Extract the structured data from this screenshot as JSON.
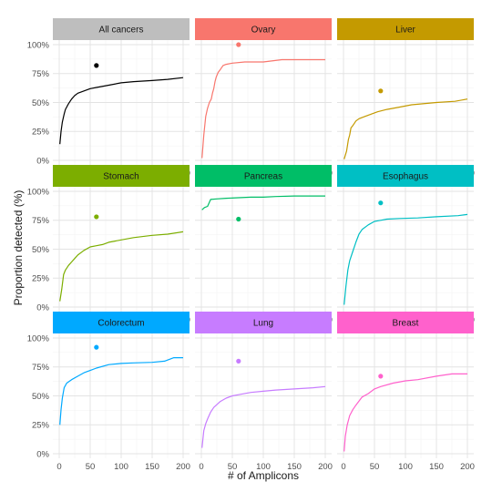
{
  "chart_data": {
    "type": "line",
    "xlabel": "# of Amplicons",
    "ylabel": "Proportion detected (%)",
    "xlim": [
      0,
      200
    ],
    "ylim": [
      0,
      1
    ],
    "x_ticks": [
      "0",
      "50",
      "100",
      "150",
      "200"
    ],
    "y_ticks": [
      "0%",
      "25%",
      "50%",
      "75%",
      "100%"
    ],
    "grid": true,
    "panels": [
      {
        "name": "All cancers",
        "color": "#000000",
        "strip_color": "#bebebe",
        "curve": [
          [
            1,
            0.14
          ],
          [
            3,
            0.25
          ],
          [
            5,
            0.33
          ],
          [
            8,
            0.4
          ],
          [
            10,
            0.44
          ],
          [
            15,
            0.49
          ],
          [
            20,
            0.53
          ],
          [
            25,
            0.56
          ],
          [
            30,
            0.58
          ],
          [
            40,
            0.6
          ],
          [
            50,
            0.62
          ],
          [
            60,
            0.63
          ],
          [
            80,
            0.65
          ],
          [
            100,
            0.67
          ],
          [
            120,
            0.68
          ],
          [
            150,
            0.69
          ],
          [
            175,
            0.7
          ],
          [
            200,
            0.715
          ]
        ],
        "point": [
          60,
          0.82
        ]
      },
      {
        "name": "Ovary",
        "color": "#f8766d",
        "strip_color": "#f8766d",
        "curve": [
          [
            1,
            0.02
          ],
          [
            4,
            0.22
          ],
          [
            7,
            0.38
          ],
          [
            10,
            0.45
          ],
          [
            13,
            0.5
          ],
          [
            16,
            0.53
          ],
          [
            18,
            0.58
          ],
          [
            20,
            0.62
          ],
          [
            22,
            0.68
          ],
          [
            24,
            0.72
          ],
          [
            27,
            0.76
          ],
          [
            30,
            0.78
          ],
          [
            35,
            0.82
          ],
          [
            40,
            0.83
          ],
          [
            50,
            0.84
          ],
          [
            70,
            0.85
          ],
          [
            100,
            0.85
          ],
          [
            130,
            0.87
          ],
          [
            200,
            0.87
          ]
        ],
        "point": [
          60,
          1.0
        ]
      },
      {
        "name": "Liver",
        "color": "#c49a00",
        "strip_color": "#c49a00",
        "curve": [
          [
            1,
            0.01
          ],
          [
            5,
            0.08
          ],
          [
            8,
            0.18
          ],
          [
            10,
            0.22
          ],
          [
            12,
            0.28
          ],
          [
            15,
            0.3
          ],
          [
            20,
            0.34
          ],
          [
            25,
            0.36
          ],
          [
            35,
            0.38
          ],
          [
            45,
            0.4
          ],
          [
            55,
            0.42
          ],
          [
            70,
            0.44
          ],
          [
            90,
            0.46
          ],
          [
            110,
            0.48
          ],
          [
            150,
            0.5
          ],
          [
            180,
            0.51
          ],
          [
            200,
            0.53
          ]
        ],
        "point": [
          60,
          0.6
        ]
      },
      {
        "name": "Stomach",
        "color": "#7cae00",
        "strip_color": "#7cae00",
        "curve": [
          [
            1,
            0.05
          ],
          [
            4,
            0.15
          ],
          [
            7,
            0.28
          ],
          [
            10,
            0.32
          ],
          [
            15,
            0.36
          ],
          [
            20,
            0.39
          ],
          [
            25,
            0.42
          ],
          [
            30,
            0.45
          ],
          [
            40,
            0.49
          ],
          [
            50,
            0.52
          ],
          [
            60,
            0.53
          ],
          [
            70,
            0.54
          ],
          [
            80,
            0.56
          ],
          [
            90,
            0.57
          ],
          [
            120,
            0.6
          ],
          [
            150,
            0.62
          ],
          [
            175,
            0.63
          ],
          [
            200,
            0.65
          ]
        ],
        "point": [
          60,
          0.78
        ]
      },
      {
        "name": "Pancreas",
        "color": "#00be67",
        "strip_color": "#00be67",
        "curve": [
          [
            1,
            0.84
          ],
          [
            5,
            0.86
          ],
          [
            10,
            0.87
          ],
          [
            15,
            0.93
          ],
          [
            25,
            0.935
          ],
          [
            40,
            0.94
          ],
          [
            60,
            0.945
          ],
          [
            80,
            0.95
          ],
          [
            100,
            0.95
          ],
          [
            120,
            0.955
          ],
          [
            150,
            0.96
          ],
          [
            200,
            0.96
          ]
        ],
        "point": [
          60,
          0.76
        ]
      },
      {
        "name": "Esophagus",
        "color": "#00bfc4",
        "strip_color": "#00bfc4",
        "curve": [
          [
            1,
            0.02
          ],
          [
            4,
            0.18
          ],
          [
            7,
            0.32
          ],
          [
            10,
            0.4
          ],
          [
            15,
            0.48
          ],
          [
            20,
            0.56
          ],
          [
            25,
            0.63
          ],
          [
            30,
            0.67
          ],
          [
            40,
            0.71
          ],
          [
            50,
            0.74
          ],
          [
            60,
            0.75
          ],
          [
            70,
            0.76
          ],
          [
            90,
            0.765
          ],
          [
            120,
            0.77
          ],
          [
            150,
            0.78
          ],
          [
            185,
            0.79
          ],
          [
            200,
            0.8
          ]
        ],
        "point": [
          60,
          0.9
        ]
      },
      {
        "name": "Colorectum",
        "color": "#00a9ff",
        "strip_color": "#00a9ff",
        "curve": [
          [
            1,
            0.25
          ],
          [
            3,
            0.38
          ],
          [
            5,
            0.48
          ],
          [
            8,
            0.57
          ],
          [
            12,
            0.61
          ],
          [
            20,
            0.64
          ],
          [
            30,
            0.67
          ],
          [
            40,
            0.7
          ],
          [
            50,
            0.72
          ],
          [
            60,
            0.74
          ],
          [
            80,
            0.77
          ],
          [
            100,
            0.78
          ],
          [
            120,
            0.785
          ],
          [
            150,
            0.79
          ],
          [
            170,
            0.8
          ],
          [
            185,
            0.83
          ],
          [
            200,
            0.83
          ]
        ],
        "point": [
          60,
          0.92
        ]
      },
      {
        "name": "Lung",
        "color": "#c77cff",
        "strip_color": "#c77cff",
        "curve": [
          [
            1,
            0.05
          ],
          [
            4,
            0.2
          ],
          [
            7,
            0.26
          ],
          [
            10,
            0.3
          ],
          [
            15,
            0.36
          ],
          [
            20,
            0.4
          ],
          [
            30,
            0.45
          ],
          [
            40,
            0.48
          ],
          [
            50,
            0.5
          ],
          [
            60,
            0.51
          ],
          [
            80,
            0.53
          ],
          [
            100,
            0.54
          ],
          [
            120,
            0.55
          ],
          [
            150,
            0.56
          ],
          [
            180,
            0.57
          ],
          [
            200,
            0.58
          ]
        ],
        "point": [
          60,
          0.8
        ]
      },
      {
        "name": "Breast",
        "color": "#ff61cc",
        "strip_color": "#ff61cc",
        "curve": [
          [
            1,
            0.02
          ],
          [
            3,
            0.15
          ],
          [
            6,
            0.25
          ],
          [
            10,
            0.33
          ],
          [
            15,
            0.38
          ],
          [
            20,
            0.42
          ],
          [
            30,
            0.49
          ],
          [
            40,
            0.52
          ],
          [
            50,
            0.56
          ],
          [
            60,
            0.58
          ],
          [
            80,
            0.61
          ],
          [
            100,
            0.63
          ],
          [
            120,
            0.64
          ],
          [
            150,
            0.67
          ],
          [
            175,
            0.69
          ],
          [
            200,
            0.69
          ]
        ],
        "point": [
          60,
          0.67
        ]
      }
    ]
  }
}
